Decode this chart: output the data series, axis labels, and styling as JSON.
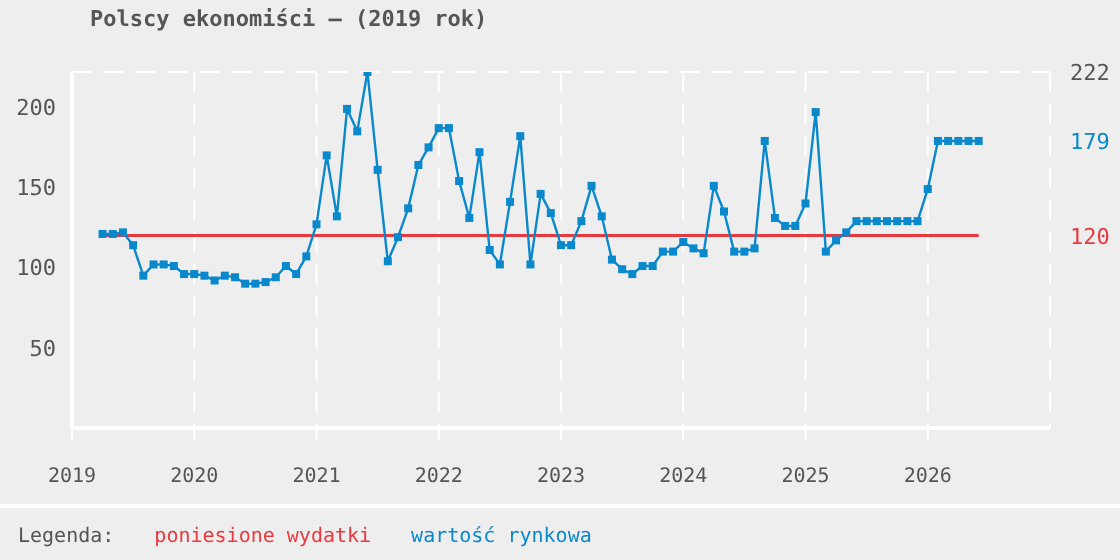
{
  "chart_data": {
    "type": "line",
    "title": "Polscy ekonomiści – (2019 rok)",
    "x": [
      "2019-04",
      "2019-05",
      "2019-06",
      "2019-07",
      "2019-08",
      "2019-09",
      "2019-10",
      "2019-11",
      "2019-12",
      "2020-01",
      "2020-02",
      "2020-03",
      "2020-04",
      "2020-05",
      "2020-06",
      "2020-07",
      "2020-08",
      "2020-09",
      "2020-10",
      "2020-11",
      "2020-12",
      "2021-01",
      "2021-02",
      "2021-03",
      "2021-04",
      "2021-05",
      "2021-06",
      "2021-07",
      "2021-08",
      "2021-09",
      "2021-10",
      "2021-11",
      "2021-12",
      "2022-01",
      "2022-02",
      "2022-03",
      "2022-04",
      "2022-05",
      "2022-06",
      "2022-07",
      "2022-08",
      "2022-09",
      "2022-10",
      "2022-11",
      "2022-12",
      "2023-01",
      "2023-02",
      "2023-03",
      "2023-04",
      "2023-05",
      "2023-06",
      "2023-07",
      "2023-08",
      "2023-09",
      "2023-10",
      "2023-11",
      "2023-12",
      "2024-01",
      "2024-02",
      "2024-03",
      "2024-04",
      "2024-05",
      "2024-06",
      "2024-07",
      "2024-08",
      "2024-09",
      "2024-10",
      "2024-11",
      "2024-12",
      "2025-01",
      "2025-02",
      "2025-03",
      "2025-04",
      "2025-05",
      "2025-06",
      "2025-07",
      "2025-08",
      "2025-09",
      "2025-10",
      "2025-11",
      "2025-12",
      "2026-01",
      "2026-02",
      "2026-03",
      "2026-04",
      "2026-05",
      "2026-06"
    ],
    "series": [
      {
        "name": "wartość rynkowa",
        "color": "#0a88cc",
        "values": [
          121,
          121,
          122,
          114,
          95,
          102,
          102,
          101,
          96,
          96,
          95,
          92,
          95,
          94,
          90,
          90,
          91,
          94,
          101,
          96,
          107,
          127,
          170,
          132,
          199,
          185,
          222,
          161,
          104,
          119,
          137,
          164,
          175,
          187,
          187,
          154,
          131,
          172,
          111,
          102,
          141,
          182,
          102,
          146,
          134,
          114,
          114,
          129,
          151,
          132,
          105,
          99,
          96,
          101,
          101,
          110,
          110,
          116,
          112,
          109,
          151,
          135,
          110,
          110,
          112,
          179,
          131,
          126,
          126,
          140,
          197,
          110,
          117,
          122,
          129,
          129,
          129,
          129,
          129,
          129,
          129,
          149,
          179,
          179,
          179,
          179,
          179
        ]
      }
    ],
    "ref_lines": [
      {
        "axis": "y",
        "value": 120,
        "label": "poniesione wydatki",
        "color": "#e8393f"
      }
    ],
    "y2lim": [
      0,
      222
    ],
    "y2ticks": [
      120,
      179,
      222
    ],
    "xlim": [
      "2019",
      "2027"
    ],
    "xticks": [
      "2019",
      "2020",
      "2021",
      "2022",
      "2023",
      "2024",
      "2025",
      "2026"
    ],
    "ylim": [
      0,
      222
    ],
    "yticks": [
      50,
      100,
      150,
      200
    ],
    "grid": true,
    "marker": "square",
    "legend": "bottom",
    "legend_title": "Legenda:"
  }
}
